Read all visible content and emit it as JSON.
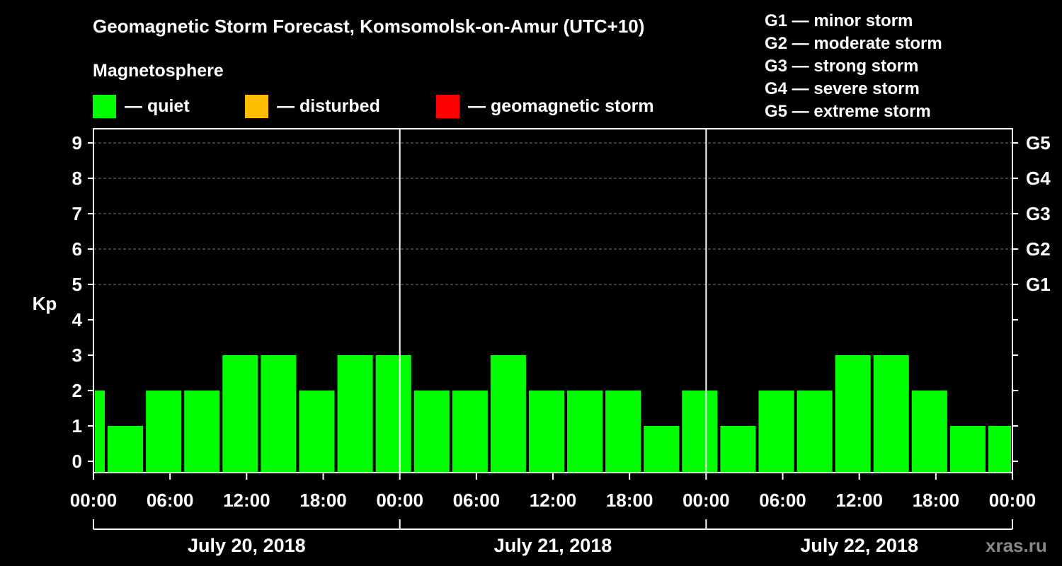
{
  "chart_data": {
    "type": "bar",
    "title": "Geomagnetic Storm Forecast, Komsomolsk-on-Amur (UTC+10)",
    "subtitle": "Magnetosphere",
    "ylabel": "Kp",
    "ylim": [
      0,
      9
    ],
    "y_ticks": [
      "0",
      "1",
      "2",
      "3",
      "4",
      "5",
      "6",
      "7",
      "8",
      "9"
    ],
    "g_ticks": [
      {
        "kp": 5,
        "label": "G1"
      },
      {
        "kp": 6,
        "label": "G2"
      },
      {
        "kp": 7,
        "label": "G3"
      },
      {
        "kp": 8,
        "label": "G4"
      },
      {
        "kp": 9,
        "label": "G5"
      }
    ],
    "x_range_hours": [
      0,
      72
    ],
    "x_ticks": [
      {
        "hour": 0,
        "label": "00:00"
      },
      {
        "hour": 6,
        "label": "06:00"
      },
      {
        "hour": 12,
        "label": "12:00"
      },
      {
        "hour": 18,
        "label": "18:00"
      },
      {
        "hour": 24,
        "label": "00:00"
      },
      {
        "hour": 30,
        "label": "06:00"
      },
      {
        "hour": 36,
        "label": "12:00"
      },
      {
        "hour": 42,
        "label": "18:00"
      },
      {
        "hour": 48,
        "label": "00:00"
      },
      {
        "hour": 54,
        "label": "06:00"
      },
      {
        "hour": 60,
        "label": "12:00"
      },
      {
        "hour": 66,
        "label": "18:00"
      },
      {
        "hour": 72,
        "label": "00:00"
      }
    ],
    "days": [
      {
        "label": "July 20, 2018",
        "start_hour": 0,
        "end_hour": 24
      },
      {
        "label": "July 21, 2018",
        "start_hour": 24,
        "end_hour": 48
      },
      {
        "label": "July 22, 2018",
        "start_hour": 48,
        "end_hour": 72
      }
    ],
    "day_dividers_hours": [
      24,
      48
    ],
    "bars": [
      {
        "start": 0,
        "end": 1,
        "kp": 2
      },
      {
        "start": 1,
        "end": 4,
        "kp": 1
      },
      {
        "start": 4,
        "end": 7,
        "kp": 2
      },
      {
        "start": 7,
        "end": 10,
        "kp": 2
      },
      {
        "start": 10,
        "end": 13,
        "kp": 3
      },
      {
        "start": 13,
        "end": 16,
        "kp": 3
      },
      {
        "start": 16,
        "end": 19,
        "kp": 2
      },
      {
        "start": 19,
        "end": 22,
        "kp": 3
      },
      {
        "start": 22,
        "end": 25,
        "kp": 3
      },
      {
        "start": 25,
        "end": 28,
        "kp": 2
      },
      {
        "start": 28,
        "end": 31,
        "kp": 2
      },
      {
        "start": 31,
        "end": 34,
        "kp": 3
      },
      {
        "start": 34,
        "end": 37,
        "kp": 2
      },
      {
        "start": 37,
        "end": 40,
        "kp": 2
      },
      {
        "start": 40,
        "end": 43,
        "kp": 2
      },
      {
        "start": 43,
        "end": 46,
        "kp": 1
      },
      {
        "start": 46,
        "end": 49,
        "kp": 2
      },
      {
        "start": 49,
        "end": 52,
        "kp": 1
      },
      {
        "start": 52,
        "end": 55,
        "kp": 2
      },
      {
        "start": 55,
        "end": 58,
        "kp": 2
      },
      {
        "start": 58,
        "end": 61,
        "kp": 3
      },
      {
        "start": 61,
        "end": 64,
        "kp": 3
      },
      {
        "start": 64,
        "end": 67,
        "kp": 2
      },
      {
        "start": 67,
        "end": 70,
        "kp": 1
      },
      {
        "start": 70,
        "end": 72,
        "kp": 1
      }
    ],
    "legend": [
      {
        "label": "— quiet",
        "color": "#00ff00"
      },
      {
        "label": "— disturbed",
        "color": "#ffbf00"
      },
      {
        "label": "— geomagnetic storm",
        "color": "#ff0000"
      }
    ],
    "storm_scale": [
      "G1 — minor storm",
      "G2 — moderate storm",
      "G3 — strong storm",
      "G4 — severe storm",
      "G5 — extreme storm"
    ]
  },
  "watermark": "xras.ru"
}
